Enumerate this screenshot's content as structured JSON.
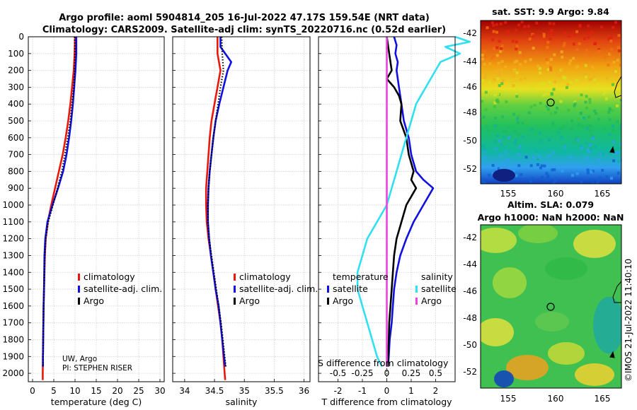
{
  "header": {
    "line1": "Argo profile: aoml 5904814_205 16-Jul-2022 47.17S 159.54E (NRT data)",
    "line2": "Climatology: CARS2009. Satellite-adj clim: synTS_20220716.nc (0.52d earlier)"
  },
  "colors": {
    "climatology": "#e8180c",
    "satellite": "#1010e0",
    "argo": "#000000",
    "sat_salinity": "#30e0f0",
    "argo_salinity": "#f040e0"
  },
  "chart_data": [
    {
      "id": "temperature",
      "type": "line",
      "xlabel": "temperature (deg C)",
      "ylabel": "",
      "xlim": [
        -1,
        31
      ],
      "ylim": [
        2050,
        0
      ],
      "xticks": [
        0,
        5,
        10,
        15,
        20,
        25,
        30
      ],
      "yticks": [
        0,
        100,
        200,
        300,
        400,
        500,
        600,
        700,
        800,
        900,
        1000,
        1100,
        1200,
        1300,
        1400,
        1500,
        1600,
        1700,
        1800,
        1900,
        2000
      ],
      "legend": [
        "climatology",
        "satellite-adj. clim.",
        "Argo"
      ],
      "annotations": [
        "UW, Argo",
        "PI: STEPHEN RISER"
      ],
      "series": [
        {
          "name": "climatology",
          "color": "#e8180c",
          "dotted": false,
          "depth": [
            0,
            100,
            200,
            300,
            400,
            500,
            600,
            700,
            800,
            900,
            1000,
            1100,
            1200,
            1300,
            1400,
            1500,
            1600,
            1700,
            1800,
            1900,
            2000,
            2040
          ],
          "values": [
            10.0,
            9.9,
            9.7,
            9.3,
            8.9,
            8.4,
            7.8,
            7.1,
            6.2,
            5.3,
            4.4,
            3.6,
            3.1,
            2.9,
            2.8,
            2.7,
            2.6,
            2.55,
            2.5,
            2.45,
            2.4,
            2.4
          ]
        },
        {
          "name": "satellite-adj. clim.",
          "color": "#1010e0",
          "dotted": false,
          "depth": [
            0,
            100,
            200,
            300,
            400,
            500,
            600,
            700,
            800,
            900,
            1000,
            1100,
            1200,
            1300,
            1400,
            1500,
            1600,
            1700,
            1800,
            1900,
            1960
          ],
          "values": [
            10.3,
            10.3,
            10.1,
            9.8,
            9.5,
            9.1,
            8.6,
            8.0,
            7.2,
            6.0,
            4.7,
            3.5,
            3.0,
            2.8,
            2.75,
            2.7,
            2.6,
            2.55,
            2.5,
            2.45,
            2.45
          ]
        },
        {
          "name": "Argo",
          "color": "#000000",
          "dotted": true,
          "depth": [
            0,
            100,
            200,
            300,
            400,
            500,
            600,
            700,
            800,
            900,
            1000,
            1100,
            1200,
            1300,
            1400,
            1500,
            1600,
            1700,
            1800,
            1900,
            1960
          ],
          "values": [
            9.9,
            10.0,
            9.9,
            9.7,
            9.3,
            8.9,
            8.3,
            7.6,
            6.9,
            5.9,
            4.8,
            3.7,
            3.1,
            2.9,
            2.8,
            2.7,
            2.6,
            2.55,
            2.5,
            2.45,
            2.45
          ]
        }
      ]
    },
    {
      "id": "salinity",
      "type": "line",
      "xlabel": "salinity",
      "xlim": [
        33.8,
        36.1
      ],
      "ylim": [
        2050,
        0
      ],
      "xticks": [
        34,
        34.5,
        35,
        35.5,
        36
      ],
      "xtick_labels": [
        "34",
        "34.5",
        "35",
        "35.5",
        "36"
      ],
      "legend": [
        "climatology",
        "satellite-adj. clim.",
        "Argo"
      ],
      "series": [
        {
          "name": "climatology",
          "color": "#e8180c",
          "dotted": false,
          "depth": [
            0,
            100,
            200,
            300,
            400,
            500,
            600,
            700,
            800,
            900,
            1000,
            1100,
            1200,
            1300,
            1400,
            1500,
            1600,
            1700,
            1800,
            1900,
            2000,
            2040
          ],
          "values": [
            34.55,
            34.55,
            34.6,
            34.55,
            34.5,
            34.45,
            34.42,
            34.4,
            34.38,
            34.36,
            34.36,
            34.37,
            34.4,
            34.44,
            34.48,
            34.52,
            34.56,
            34.6,
            34.63,
            34.65,
            34.67,
            34.68
          ]
        },
        {
          "name": "satellite-adj. clim.",
          "color": "#1010e0",
          "dotted": false,
          "depth": [
            0,
            60,
            100,
            150,
            200,
            300,
            400,
            500,
            600,
            700,
            800,
            900,
            1000,
            1100,
            1200,
            1300,
            1400,
            1500,
            1600,
            1700,
            1800,
            1900,
            1960
          ],
          "values": [
            34.6,
            34.6,
            34.68,
            34.78,
            34.72,
            34.65,
            34.58,
            34.52,
            34.48,
            34.45,
            34.42,
            34.4,
            34.39,
            34.39,
            34.41,
            34.44,
            34.48,
            34.52,
            34.57,
            34.6,
            34.63,
            34.66,
            34.68
          ]
        },
        {
          "name": "Argo",
          "color": "#000000",
          "dotted": true,
          "depth": [
            0,
            100,
            200,
            300,
            400,
            500,
            600,
            700,
            800,
            900,
            1000,
            1100,
            1200,
            1300,
            1400,
            1500,
            1600,
            1700,
            1800,
            1900,
            1960
          ],
          "values": [
            34.62,
            34.63,
            34.65,
            34.6,
            34.56,
            34.52,
            34.48,
            34.45,
            34.42,
            34.4,
            34.39,
            34.39,
            34.41,
            34.45,
            34.49,
            34.53,
            34.57,
            34.61,
            34.64,
            34.67,
            34.69
          ]
        }
      ]
    },
    {
      "id": "difference",
      "type": "line",
      "xlabel": "T difference from climatology",
      "s_axis_label": "S difference from climatology",
      "xlim": [
        -2.8,
        2.8
      ],
      "ylim": [
        2050,
        0
      ],
      "xticks": [
        -2,
        -1,
        0,
        1,
        2
      ],
      "s_ticks": [
        -0.5,
        -0.25,
        0,
        0.25,
        0.5
      ],
      "s_tick_labels": [
        "-0.5",
        "-0.25",
        "0",
        "0.25",
        "0.5"
      ],
      "legend_titles": [
        "temperature",
        "salinity"
      ],
      "legend_temperature": [
        "satellite",
        "Argo"
      ],
      "legend_salinity": [
        "satellite",
        "Argo"
      ],
      "series": [
        {
          "name": "T satellite",
          "color": "#1010e0",
          "dotted": false,
          "depth": [
            0,
            50,
            100,
            150,
            200,
            300,
            400,
            500,
            600,
            700,
            800,
            850,
            900,
            1000,
            1100,
            1200,
            1300,
            1400,
            1500,
            1600,
            1700,
            1800,
            1900,
            1960
          ],
          "values": [
            0.3,
            0.4,
            0.35,
            0.45,
            0.4,
            0.5,
            0.6,
            0.7,
            0.9,
            1.0,
            1.2,
            1.5,
            1.9,
            1.5,
            1.1,
            0.8,
            0.55,
            0.4,
            0.3,
            0.25,
            0.2,
            0.12,
            0.08,
            0.05
          ]
        },
        {
          "name": "T Argo",
          "color": "#000000",
          "dotted": false,
          "depth": [
            0,
            100,
            200,
            250,
            300,
            350,
            400,
            500,
            600,
            700,
            800,
            850,
            900,
            1000,
            1100,
            1200,
            1300,
            1400,
            1500,
            1600,
            1700,
            1800,
            1900,
            1960
          ],
          "values": [
            0.0,
            0.1,
            0.2,
            0.0,
            0.3,
            0.5,
            0.6,
            0.55,
            0.8,
            0.9,
            1.1,
            1.0,
            1.2,
            0.8,
            0.6,
            0.4,
            0.3,
            0.25,
            0.2,
            0.15,
            0.1,
            0.08,
            0.05,
            0.05
          ]
        },
        {
          "name": "S satellite",
          "color": "#30e0f0",
          "dotted": false,
          "depth": [
            0,
            30,
            60,
            100,
            150,
            200,
            300,
            400,
            500,
            600,
            700,
            800,
            900,
            1000,
            1100,
            1200,
            1300,
            1400,
            1500,
            1600,
            1700,
            1800,
            1900,
            1960
          ],
          "values": [
            0.7,
            0.85,
            0.6,
            0.75,
            0.55,
            0.5,
            0.4,
            0.3,
            0.25,
            0.2,
            0.15,
            0.1,
            0.05,
            0.0,
            -0.1,
            -0.2,
            -0.25,
            -0.3,
            -0.3,
            -0.25,
            -0.2,
            -0.15,
            -0.1,
            -0.05
          ]
        },
        {
          "name": "S Argo",
          "color": "#f040e0",
          "dotted": false,
          "depth": [
            0,
            1960
          ],
          "values": [
            0.0,
            0.0
          ]
        }
      ]
    }
  ],
  "maps": {
    "sst": {
      "title": "sat. SST: 9.9 Argo: 9.84",
      "xticks": [
        "155",
        "160",
        "165"
      ],
      "yticks": [
        "-42",
        "-44",
        "-46",
        "-48",
        "-50",
        "-52"
      ]
    },
    "sla": {
      "title1": "Altim. SLA: 0.079",
      "title2": "Argo h1000: NaN h2000: NaN",
      "xticks": [
        "155",
        "160",
        "165"
      ],
      "yticks": [
        "-42",
        "-44",
        "-46",
        "-48",
        "-50",
        "-52"
      ]
    }
  },
  "watermark": "©IMOS 21-Jul-2022 11:40:10"
}
